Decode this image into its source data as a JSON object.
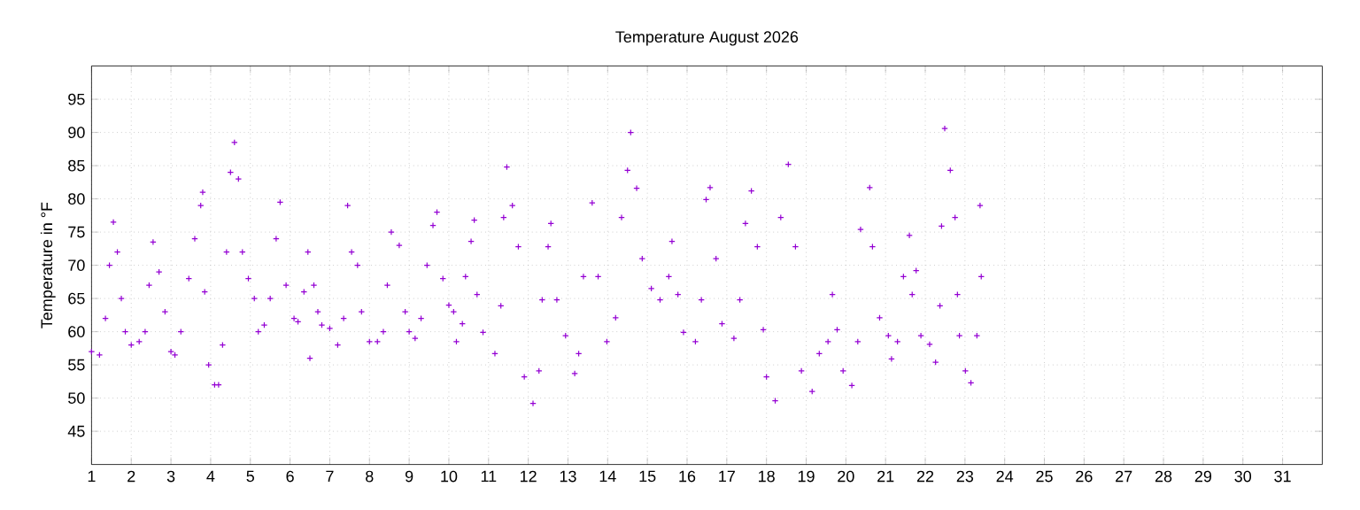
{
  "chart_data": {
    "type": "scatter",
    "title": "Temperature August 2026",
    "ylabel": "Temperature in °F",
    "x": [
      1.0,
      1.2,
      1.35,
      1.45,
      1.55,
      1.65,
      1.75,
      1.85,
      2.0,
      2.2,
      2.35,
      2.45,
      2.55,
      2.7,
      2.85,
      3.0,
      3.1,
      3.25,
      3.45,
      3.6,
      3.75,
      3.8,
      3.85,
      3.95,
      4.1,
      4.2,
      4.3,
      4.4,
      4.5,
      4.6,
      4.7,
      4.8,
      4.95,
      5.1,
      5.2,
      5.35,
      5.5,
      5.65,
      5.75,
      5.9,
      6.1,
      6.2,
      6.35,
      6.45,
      6.5,
      6.6,
      6.7,
      6.8,
      7.0,
      7.2,
      7.35,
      7.45,
      7.55,
      7.7,
      7.8,
      8.0,
      8.2,
      8.35,
      8.45,
      8.55,
      8.75,
      8.9,
      9.0,
      9.15,
      9.3,
      9.45,
      9.6,
      9.7,
      9.85,
      10.0,
      10.12,
      10.19,
      10.34,
      10.42,
      10.56,
      10.64,
      10.71,
      10.86,
      11.16,
      11.31,
      11.38,
      11.46,
      11.6,
      11.75,
      11.9,
      12.12,
      12.27,
      12.35,
      12.5,
      12.57,
      12.72,
      12.94,
      13.17,
      13.27,
      13.39,
      13.61,
      13.76,
      13.98,
      14.2,
      14.35,
      14.5,
      14.58,
      14.73,
      14.87,
      15.1,
      15.32,
      15.54,
      15.62,
      15.77,
      15.91,
      16.21,
      16.36,
      16.48,
      16.58,
      16.73,
      16.88,
      17.18,
      17.33,
      17.47,
      17.62,
      17.77,
      17.92,
      18.0,
      18.22,
      18.36,
      18.55,
      18.73,
      18.88,
      19.15,
      19.33,
      19.55,
      19.66,
      19.78,
      19.93,
      20.15,
      20.3,
      20.37,
      20.6,
      20.67,
      20.85,
      21.07,
      21.15,
      21.3,
      21.45,
      21.6,
      21.67,
      21.77,
      21.89,
      22.11,
      22.26,
      22.37,
      22.41,
      22.49,
      22.63,
      22.75,
      22.81,
      22.86,
      23.01,
      23.15,
      23.3,
      23.38,
      23.41
    ],
    "values": [
      57,
      56.5,
      62,
      70,
      76.5,
      72,
      65,
      60,
      58,
      58.5,
      60,
      67,
      73.5,
      69,
      63,
      57,
      56.5,
      60,
      68,
      74,
      79,
      81,
      66,
      55,
      52,
      52,
      58,
      72,
      84,
      88.5,
      83,
      72,
      68,
      65,
      60,
      61,
      65,
      74,
      79.5,
      67,
      62,
      61.5,
      66,
      72,
      56,
      67,
      63,
      61,
      60.5,
      58,
      62,
      79,
      72,
      70,
      63,
      58.5,
      58.5,
      60,
      67,
      75,
      73,
      63,
      60,
      59,
      62,
      70,
      76,
      78,
      68,
      64,
      63,
      58.5,
      61.2,
      68.3,
      73.6,
      76.8,
      65.6,
      59.9,
      56.7,
      63.9,
      77.2,
      84.8,
      79,
      72.8,
      53.2,
      49.2,
      54.1,
      64.8,
      72.8,
      76.3,
      64.8,
      59.4,
      53.7,
      56.7,
      68.3,
      79.4,
      68.3,
      58.5,
      62.1,
      77.2,
      84.3,
      90,
      81.6,
      71,
      66.5,
      64.8,
      68.3,
      73.6,
      65.6,
      59.9,
      58.5,
      64.8,
      79.9,
      81.7,
      71,
      61.2,
      59,
      64.8,
      76.3,
      81.2,
      72.8,
      60.3,
      53.2,
      49.6,
      77.2,
      85.2,
      72.8,
      54.1,
      51,
      56.7,
      58.5,
      65.6,
      60.3,
      54.1,
      51.9,
      58.5,
      75.4,
      81.7,
      72.8,
      62.1,
      59.4,
      55.9,
      58.5,
      68.3,
      74.5,
      65.6,
      69.2,
      59.4,
      58.1,
      55.4,
      63.9,
      75.9,
      90.6,
      84.3,
      77.2,
      65.6,
      59.4,
      54.1,
      52.3,
      59.4,
      79,
      68.3
    ],
    "color": "#9400d3",
    "marker": "cross",
    "grid": true,
    "xlim": [
      1,
      32
    ],
    "ylim": [
      40,
      100
    ],
    "xticks": [
      1,
      2,
      3,
      4,
      5,
      6,
      7,
      8,
      9,
      10,
      11,
      12,
      13,
      14,
      15,
      16,
      17,
      18,
      19,
      20,
      21,
      22,
      23,
      24,
      25,
      26,
      27,
      28,
      29,
      30,
      31
    ],
    "yticks": [
      45,
      50,
      55,
      60,
      65,
      70,
      75,
      80,
      85,
      90,
      95
    ]
  }
}
